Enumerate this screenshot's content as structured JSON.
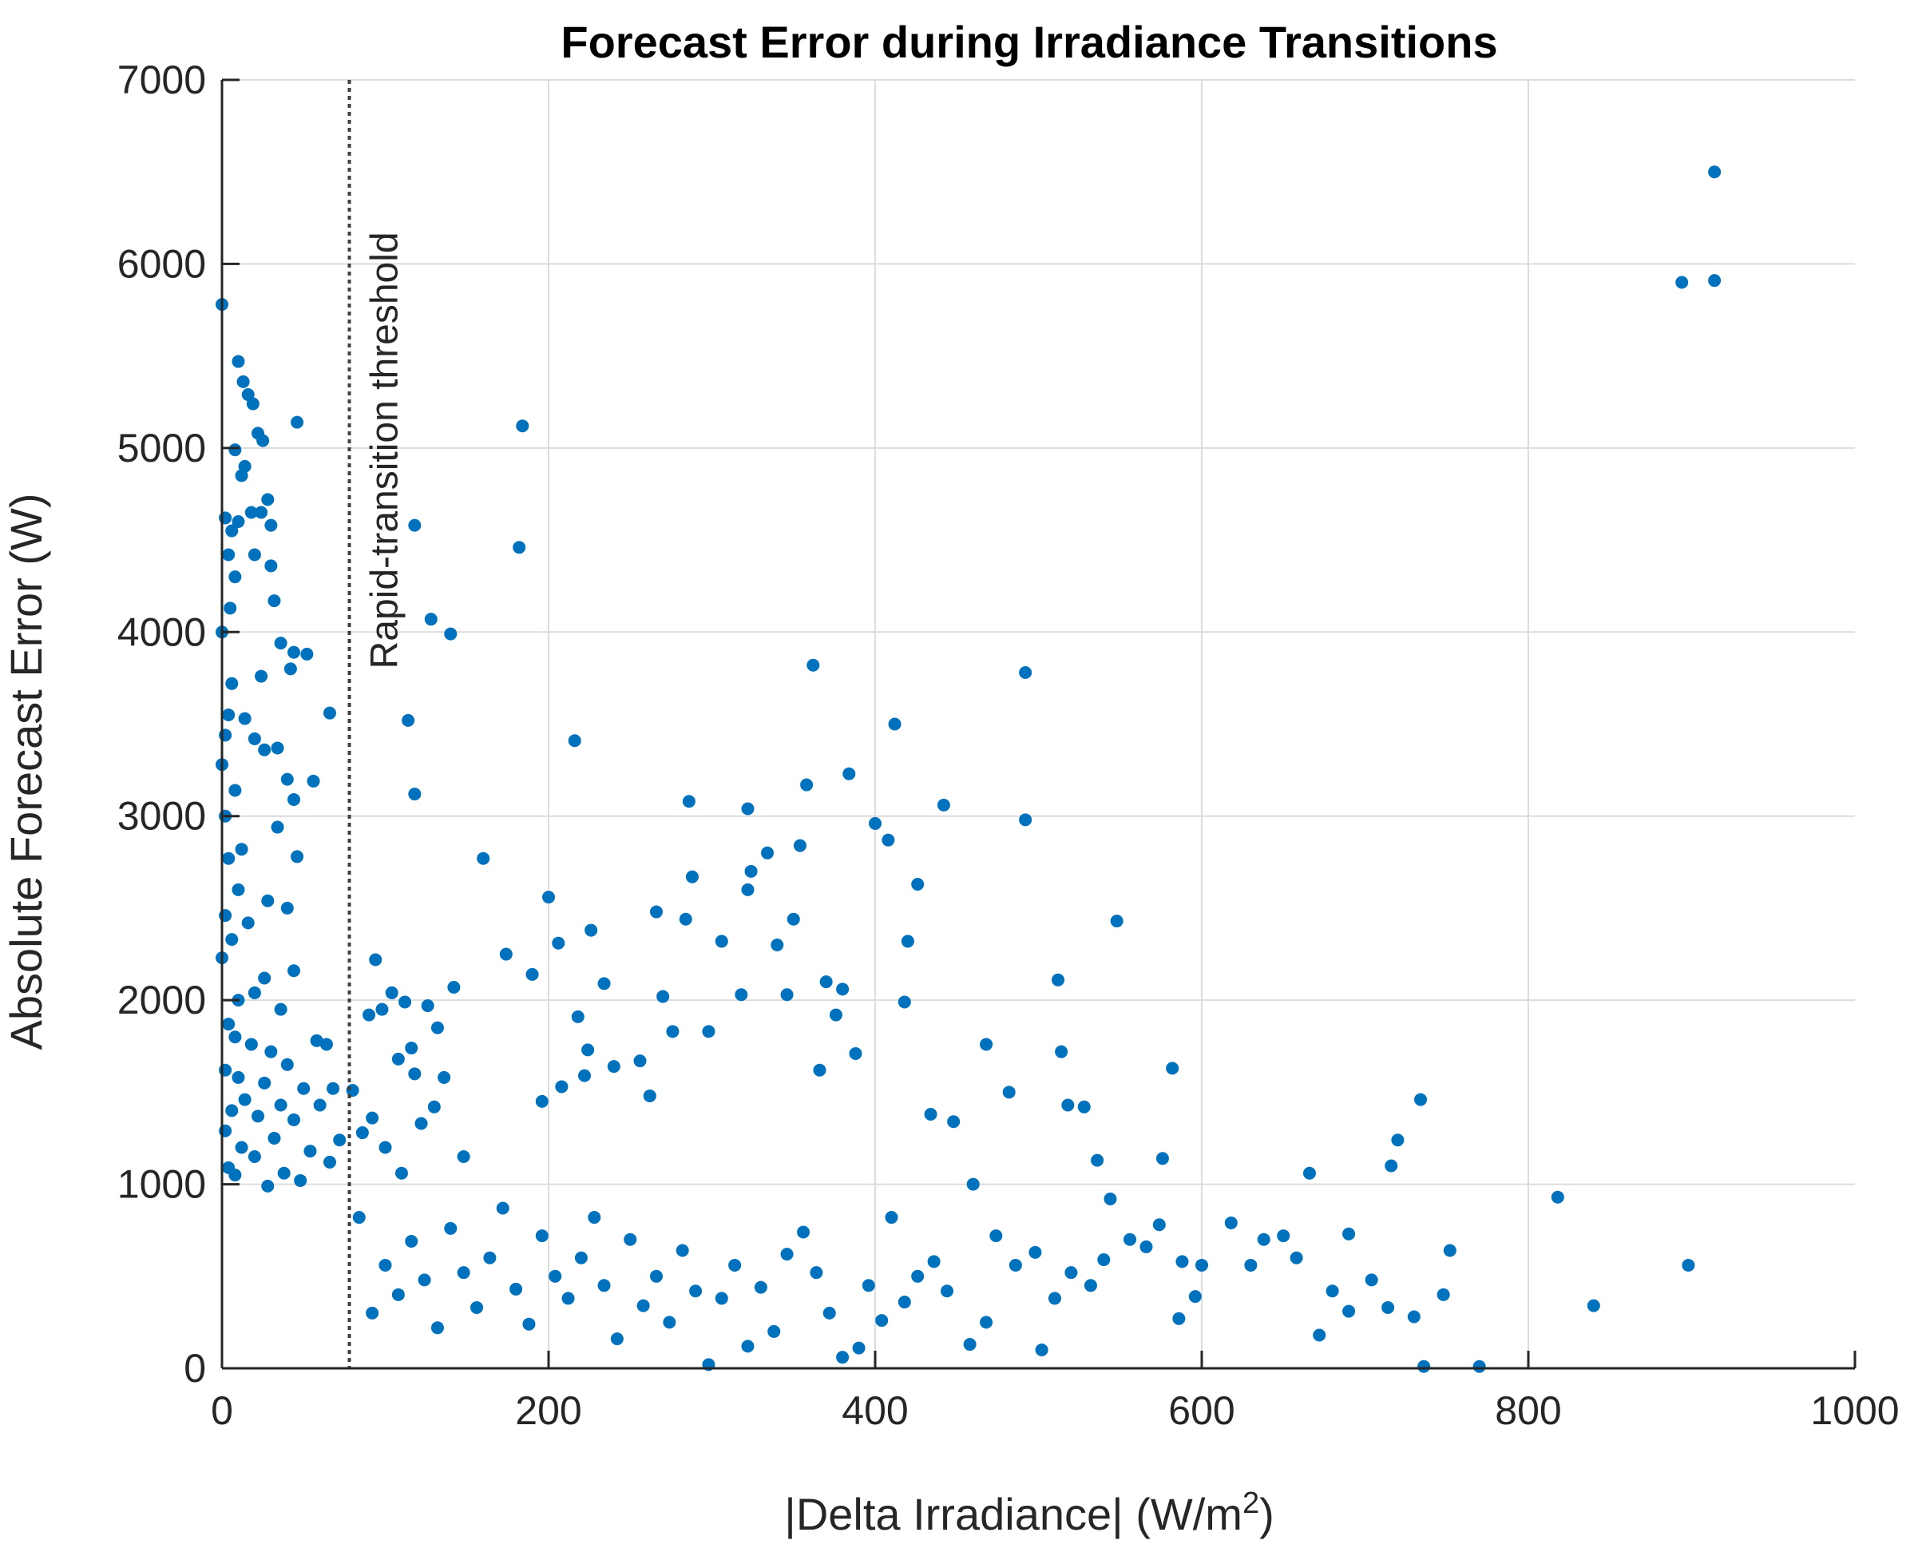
{
  "chart_data": {
    "type": "scatter",
    "title": "Forecast Error during Irradiance Transitions",
    "xlabel_main": "|Delta Irradiance| (W/m",
    "xlabel_sup": "2",
    "xlabel_end": ")",
    "ylabel": "Absolute Forecast Error (W)",
    "xlim": [
      0,
      1000
    ],
    "ylim": [
      0,
      7000
    ],
    "xticks": [
      0,
      200,
      400,
      600,
      800,
      1000
    ],
    "yticks": [
      0,
      1000,
      2000,
      3000,
      4000,
      5000,
      6000,
      7000
    ],
    "grid": true,
    "marker_color": "#0072BD",
    "threshold": {
      "x": 78,
      "label": "Rapid-transition threshold"
    },
    "series": [
      {
        "values": [
          [
            0,
            5780
          ],
          [
            2,
            4620
          ],
          [
            5,
            4130
          ],
          [
            10,
            5470
          ],
          [
            13,
            5360
          ],
          [
            16,
            5290
          ],
          [
            19,
            5240
          ],
          [
            22,
            5080
          ],
          [
            25,
            5040
          ],
          [
            8,
            4990
          ],
          [
            14,
            4900
          ],
          [
            12,
            4850
          ],
          [
            18,
            4650
          ],
          [
            28,
            4720
          ],
          [
            24,
            4650
          ],
          [
            6,
            4550
          ],
          [
            10,
            4600
          ],
          [
            30,
            4580
          ],
          [
            46,
            5140
          ],
          [
            20,
            4420
          ],
          [
            4,
            4420
          ],
          [
            8,
            4300
          ],
          [
            30,
            4360
          ],
          [
            32,
            4170
          ],
          [
            0,
            4000
          ],
          [
            36,
            3940
          ],
          [
            44,
            3890
          ],
          [
            52,
            3880
          ],
          [
            42,
            3800
          ],
          [
            24,
            3760
          ],
          [
            6,
            3720
          ],
          [
            4,
            3550
          ],
          [
            14,
            3530
          ],
          [
            66,
            3560
          ],
          [
            20,
            3420
          ],
          [
            26,
            3360
          ],
          [
            34,
            3370
          ],
          [
            2,
            3440
          ],
          [
            40,
            3200
          ],
          [
            0,
            3280
          ],
          [
            8,
            3140
          ],
          [
            56,
            3190
          ],
          [
            44,
            3090
          ],
          [
            2,
            3000
          ],
          [
            34,
            2940
          ],
          [
            12,
            2820
          ],
          [
            4,
            2770
          ],
          [
            46,
            2780
          ],
          [
            10,
            2600
          ],
          [
            28,
            2540
          ],
          [
            2,
            2460
          ],
          [
            40,
            2500
          ],
          [
            16,
            2420
          ],
          [
            6,
            2330
          ],
          [
            0,
            2230
          ],
          [
            26,
            2120
          ],
          [
            44,
            2160
          ],
          [
            10,
            2000
          ],
          [
            20,
            2040
          ],
          [
            36,
            1950
          ],
          [
            4,
            1870
          ],
          [
            8,
            1800
          ],
          [
            18,
            1760
          ],
          [
            30,
            1720
          ],
          [
            40,
            1650
          ],
          [
            58,
            1780
          ],
          [
            64,
            1760
          ],
          [
            2,
            1620
          ],
          [
            10,
            1580
          ],
          [
            26,
            1550
          ],
          [
            50,
            1520
          ],
          [
            68,
            1520
          ],
          [
            14,
            1460
          ],
          [
            36,
            1430
          ],
          [
            60,
            1430
          ],
          [
            6,
            1400
          ],
          [
            22,
            1370
          ],
          [
            44,
            1350
          ],
          [
            2,
            1290
          ],
          [
            32,
            1250
          ],
          [
            72,
            1240
          ],
          [
            12,
            1200
          ],
          [
            54,
            1180
          ],
          [
            20,
            1150
          ],
          [
            66,
            1120
          ],
          [
            4,
            1090
          ],
          [
            38,
            1060
          ],
          [
            8,
            1050
          ],
          [
            48,
            1020
          ],
          [
            28,
            990
          ],
          [
            80,
            1510
          ],
          [
            86,
            1280
          ],
          [
            92,
            1360
          ],
          [
            90,
            1920
          ],
          [
            98,
            1950
          ],
          [
            94,
            2220
          ],
          [
            104,
            2040
          ],
          [
            112,
            1990
          ],
          [
            126,
            1970
          ],
          [
            116,
            1740
          ],
          [
            108,
            1680
          ],
          [
            118,
            1600
          ],
          [
            136,
            1580
          ],
          [
            132,
            1850
          ],
          [
            142,
            2070
          ],
          [
            130,
            1420
          ],
          [
            122,
            1330
          ],
          [
            100,
            1200
          ],
          [
            148,
            1150
          ],
          [
            110,
            1060
          ],
          [
            114,
            3520
          ],
          [
            118,
            3120
          ],
          [
            128,
            4070
          ],
          [
            140,
            3990
          ],
          [
            118,
            4580
          ],
          [
            160,
            2770
          ],
          [
            174,
            2250
          ],
          [
            184,
            5120
          ],
          [
            182,
            4460
          ],
          [
            190,
            2140
          ],
          [
            200,
            2560
          ],
          [
            206,
            2310
          ],
          [
            216,
            3410
          ],
          [
            218,
            1910
          ],
          [
            224,
            1730
          ],
          [
            226,
            2380
          ],
          [
            234,
            2090
          ],
          [
            222,
            1590
          ],
          [
            208,
            1530
          ],
          [
            196,
            1450
          ],
          [
            240,
            1640
          ],
          [
            256,
            1670
          ],
          [
            262,
            1480
          ],
          [
            266,
            2480
          ],
          [
            270,
            2020
          ],
          [
            276,
            1830
          ],
          [
            284,
            2440
          ],
          [
            286,
            3080
          ],
          [
            288,
            2670
          ],
          [
            298,
            1830
          ],
          [
            306,
            2320
          ],
          [
            318,
            2030
          ],
          [
            322,
            2600
          ],
          [
            324,
            2700
          ],
          [
            322,
            3040
          ],
          [
            334,
            2800
          ],
          [
            340,
            2300
          ],
          [
            346,
            2030
          ],
          [
            350,
            2440
          ],
          [
            354,
            2840
          ],
          [
            358,
            3170
          ],
          [
            362,
            3820
          ],
          [
            366,
            1620
          ],
          [
            370,
            2100
          ],
          [
            376,
            1920
          ],
          [
            380,
            2060
          ],
          [
            384,
            3230
          ],
          [
            388,
            1710
          ],
          [
            400,
            2960
          ],
          [
            408,
            2870
          ],
          [
            412,
            3500
          ],
          [
            418,
            1990
          ],
          [
            420,
            2320
          ],
          [
            426,
            2630
          ],
          [
            442,
            3060
          ],
          [
            434,
            1380
          ],
          [
            448,
            1340
          ],
          [
            460,
            1000
          ],
          [
            468,
            1760
          ],
          [
            482,
            1500
          ],
          [
            492,
            3780
          ],
          [
            492,
            2980
          ],
          [
            512,
            2110
          ],
          [
            514,
            1720
          ],
          [
            518,
            1430
          ],
          [
            528,
            1420
          ],
          [
            536,
            1130
          ],
          [
            548,
            2430
          ],
          [
            544,
            920
          ],
          [
            576,
            1140
          ],
          [
            582,
            1630
          ],
          [
            588,
            580
          ],
          [
            596,
            390
          ],
          [
            618,
            790
          ],
          [
            638,
            700
          ],
          [
            650,
            720
          ],
          [
            666,
            1060
          ],
          [
            690,
            730
          ],
          [
            716,
            1100
          ],
          [
            720,
            1240
          ],
          [
            734,
            1460
          ],
          [
            748,
            400
          ],
          [
            752,
            640
          ],
          [
            770,
            10
          ],
          [
            818,
            930
          ],
          [
            840,
            340
          ],
          [
            894,
            5900
          ],
          [
            898,
            560
          ],
          [
            914,
            6500
          ],
          [
            914,
            5910
          ],
          [
            736,
            10
          ],
          [
            714,
            330
          ],
          [
            730,
            280
          ],
          [
            704,
            480
          ],
          [
            690,
            310
          ],
          [
            680,
            420
          ],
          [
            672,
            180
          ],
          [
            658,
            600
          ],
          [
            630,
            560
          ],
          [
            600,
            560
          ],
          [
            586,
            270
          ],
          [
            574,
            780
          ],
          [
            566,
            660
          ],
          [
            556,
            700
          ],
          [
            540,
            590
          ],
          [
            532,
            450
          ],
          [
            520,
            520
          ],
          [
            510,
            380
          ],
          [
            502,
            100
          ],
          [
            498,
            630
          ],
          [
            486,
            560
          ],
          [
            474,
            720
          ],
          [
            468,
            250
          ],
          [
            458,
            130
          ],
          [
            444,
            420
          ],
          [
            436,
            580
          ],
          [
            426,
            500
          ],
          [
            418,
            360
          ],
          [
            410,
            820
          ],
          [
            404,
            260
          ],
          [
            396,
            450
          ],
          [
            390,
            110
          ],
          [
            380,
            60
          ],
          [
            372,
            300
          ],
          [
            364,
            520
          ],
          [
            356,
            740
          ],
          [
            346,
            620
          ],
          [
            338,
            200
          ],
          [
            330,
            440
          ],
          [
            322,
            120
          ],
          [
            314,
            560
          ],
          [
            306,
            380
          ],
          [
            298,
            20
          ],
          [
            290,
            420
          ],
          [
            282,
            640
          ],
          [
            274,
            250
          ],
          [
            266,
            500
          ],
          [
            258,
            340
          ],
          [
            250,
            700
          ],
          [
            242,
            160
          ],
          [
            234,
            450
          ],
          [
            228,
            820
          ],
          [
            220,
            600
          ],
          [
            212,
            380
          ],
          [
            204,
            500
          ],
          [
            196,
            720
          ],
          [
            188,
            240
          ],
          [
            180,
            430
          ],
          [
            172,
            870
          ],
          [
            164,
            600
          ],
          [
            156,
            330
          ],
          [
            148,
            520
          ],
          [
            140,
            760
          ],
          [
            132,
            220
          ],
          [
            124,
            480
          ],
          [
            116,
            690
          ],
          [
            108,
            400
          ],
          [
            100,
            560
          ],
          [
            92,
            300
          ],
          [
            84,
            820
          ]
        ]
      }
    ]
  }
}
